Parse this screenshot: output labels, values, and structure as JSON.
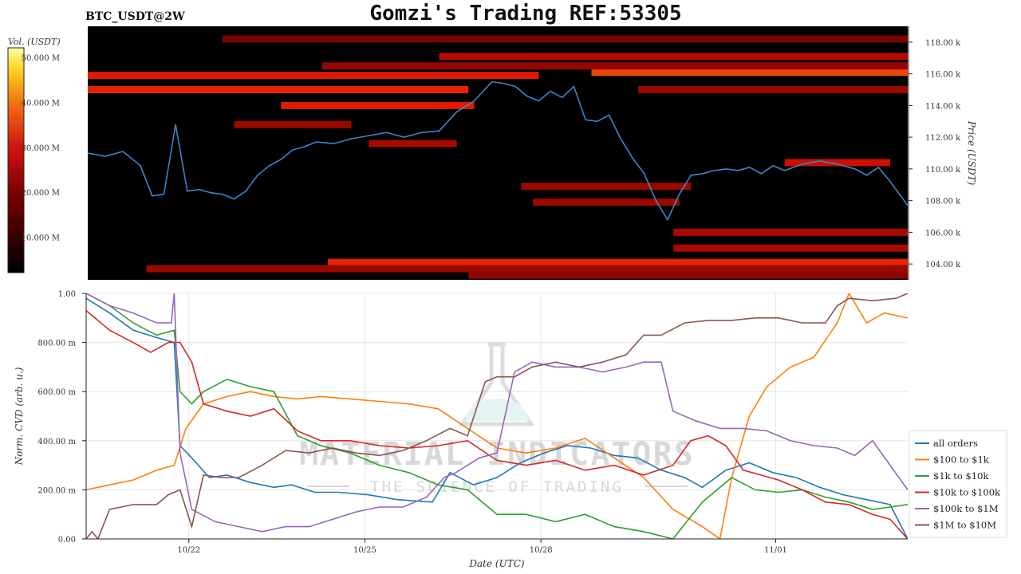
{
  "header": {
    "pair": "BTC_USDT@2W",
    "title": "Gomzi's Trading REF:53305"
  },
  "watermark": {
    "line1": "MATERIAL INDICATORS",
    "line2": "THE SCIENCE OF TRADING"
  },
  "colors": {
    "price_line": "#3b86c6",
    "heat_low": "#000000",
    "heat_mid": "#cc1010",
    "heat_high": "#ffff80",
    "grid": "#e6e6e6"
  },
  "chart_data": [
    {
      "type": "heatmap",
      "name": "order-book-heatmap",
      "xlabel": "",
      "ylabel": "Price (USDT)",
      "colorbar_label": "Vol. (USDT)",
      "colorbar_ticks": [
        "10.000 M",
        "20.000 M",
        "30.000 M",
        "40.000 M",
        "50.000 M"
      ],
      "colorbar_range": [
        0,
        50000000
      ],
      "ylim": [
        103000,
        119000
      ],
      "yticks": [
        "104.00 k",
        "106.00 k",
        "108.00 k",
        "110.00 k",
        "112.00 k",
        "114.00 k",
        "116.00 k",
        "118.00 k"
      ],
      "ytick_values": [
        104000,
        106000,
        108000,
        110000,
        112000,
        114000,
        116000,
        118000
      ],
      "x_range_days": [
        0,
        14
      ],
      "price_series": {
        "x_days": [
          0,
          0.3,
          0.6,
          0.9,
          1.1,
          1.3,
          1.5,
          1.7,
          1.9,
          2.1,
          2.3,
          2.5,
          2.7,
          2.9,
          3.1,
          3.3,
          3.5,
          3.7,
          3.9,
          4.2,
          4.5,
          4.8,
          5.1,
          5.4,
          5.7,
          6.0,
          6.3,
          6.6,
          6.9,
          7.1,
          7.3,
          7.5,
          7.7,
          7.9,
          8.1,
          8.3,
          8.5,
          8.7,
          8.9,
          9.1,
          9.3,
          9.5,
          9.7,
          9.9,
          10.1,
          10.3,
          10.5,
          10.7,
          10.9,
          11.1,
          11.3,
          11.5,
          11.7,
          11.9,
          12.2,
          12.5,
          12.8,
          13.1,
          13.3,
          13.5,
          13.7,
          13.9,
          14.0
        ],
        "price": [
          111000,
          110800,
          111100,
          110200,
          108300,
          108400,
          112800,
          108600,
          108700,
          108500,
          108400,
          108100,
          108600,
          109600,
          110200,
          110600,
          111200,
          111400,
          111700,
          111600,
          111900,
          112100,
          112300,
          112000,
          112300,
          112400,
          113600,
          114300,
          115500,
          115400,
          115200,
          114600,
          114300,
          114900,
          114500,
          115200,
          113100,
          113000,
          113400,
          111900,
          110700,
          109700,
          108000,
          106800,
          108400,
          109600,
          109700,
          109900,
          110000,
          109900,
          110100,
          109700,
          110200,
          109900,
          110300,
          110500,
          110300,
          110000,
          109600,
          110100,
          109200,
          108200,
          107700
        ]
      },
      "liquidity_bands": [
        {
          "price": 116100,
          "x_start": 8.6,
          "x_end": 14.0,
          "intensity": 0.75
        },
        {
          "price": 115900,
          "x_start": 0.0,
          "x_end": 7.7,
          "intensity": 0.55
        },
        {
          "price": 115000,
          "x_start": 0.0,
          "x_end": 6.5,
          "intensity": 0.6
        },
        {
          "price": 115000,
          "x_start": 9.4,
          "x_end": 14.0,
          "intensity": 0.25
        },
        {
          "price": 114000,
          "x_start": 3.3,
          "x_end": 6.6,
          "intensity": 0.55
        },
        {
          "price": 117100,
          "x_start": 6.0,
          "x_end": 14.0,
          "intensity": 0.35
        },
        {
          "price": 116500,
          "x_start": 4.0,
          "x_end": 14.0,
          "intensity": 0.22
        },
        {
          "price": 112800,
          "x_start": 2.5,
          "x_end": 4.5,
          "intensity": 0.25
        },
        {
          "price": 111600,
          "x_start": 4.8,
          "x_end": 6.3,
          "intensity": 0.3
        },
        {
          "price": 110400,
          "x_start": 11.9,
          "x_end": 13.7,
          "intensity": 0.45
        },
        {
          "price": 108900,
          "x_start": 7.4,
          "x_end": 10.3,
          "intensity": 0.25
        },
        {
          "price": 107900,
          "x_start": 7.6,
          "x_end": 10.1,
          "intensity": 0.25
        },
        {
          "price": 106000,
          "x_start": 10.0,
          "x_end": 14.0,
          "intensity": 0.3
        },
        {
          "price": 105000,
          "x_start": 10.0,
          "x_end": 14.0,
          "intensity": 0.3
        },
        {
          "price": 104100,
          "x_start": 4.1,
          "x_end": 14.0,
          "intensity": 0.6
        },
        {
          "price": 103700,
          "x_start": 1.0,
          "x_end": 14.0,
          "intensity": 0.25
        },
        {
          "price": 103300,
          "x_start": 6.5,
          "x_end": 14.0,
          "intensity": 0.2
        },
        {
          "price": 118200,
          "x_start": 2.3,
          "x_end": 14.0,
          "intensity": 0.12
        }
      ]
    },
    {
      "type": "line",
      "name": "normalized-cvd",
      "title": "",
      "xlabel": "Date (UTC)",
      "ylabel": "Norm. CVD (arb. u.)",
      "ylim": [
        0,
        1
      ],
      "yticks": [
        "0.00",
        "200.00 m",
        "400.00 m",
        "600.00 m",
        "800.00 m",
        "1.00"
      ],
      "ytick_values": [
        0,
        0.2,
        0.4,
        0.6,
        0.8,
        1.0
      ],
      "x_range_days": [
        0,
        14
      ],
      "xticks": [
        "10/22",
        "10/25",
        "10/28",
        "11/01"
      ],
      "xtick_days": [
        1.75,
        4.75,
        7.75,
        11.75
      ],
      "legend_position": "bottom-right",
      "series": [
        {
          "name": "all orders",
          "color": "#1f77b4",
          "x": [
            0,
            0.4,
            0.8,
            1.2,
            1.5,
            1.6,
            1.8,
            2.1,
            2.4,
            2.8,
            3.2,
            3.5,
            3.9,
            4.3,
            4.8,
            5.3,
            5.9,
            6.2,
            6.6,
            7.0,
            7.4,
            7.8,
            8.2,
            8.6,
            9.0,
            9.4,
            9.8,
            10.2,
            10.5,
            10.9,
            11.3,
            11.7,
            12.1,
            12.5,
            12.9,
            13.3,
            13.7,
            14.0
          ],
          "y": [
            0.98,
            0.92,
            0.85,
            0.82,
            0.8,
            0.38,
            0.33,
            0.25,
            0.26,
            0.23,
            0.21,
            0.22,
            0.19,
            0.19,
            0.18,
            0.16,
            0.15,
            0.27,
            0.22,
            0.25,
            0.31,
            0.35,
            0.38,
            0.37,
            0.34,
            0.33,
            0.28,
            0.25,
            0.21,
            0.28,
            0.31,
            0.27,
            0.25,
            0.21,
            0.18,
            0.16,
            0.14,
            0.0
          ]
        },
        {
          "name": "$100 to $1k",
          "color": "#ff7f0e",
          "x": [
            0,
            0.4,
            0.8,
            1.2,
            1.5,
            1.7,
            2.0,
            2.4,
            2.8,
            3.2,
            3.6,
            4.0,
            4.5,
            5.0,
            5.5,
            6.0,
            6.5,
            7.0,
            7.5,
            8.0,
            8.5,
            9.0,
            9.5,
            10.0,
            10.5,
            10.8,
            11.0,
            11.3,
            11.6,
            12.0,
            12.4,
            12.8,
            13.0,
            13.3,
            13.6,
            14.0
          ],
          "y": [
            0.2,
            0.22,
            0.24,
            0.28,
            0.3,
            0.45,
            0.55,
            0.58,
            0.6,
            0.58,
            0.57,
            0.58,
            0.57,
            0.56,
            0.55,
            0.53,
            0.45,
            0.37,
            0.35,
            0.37,
            0.41,
            0.33,
            0.25,
            0.12,
            0.05,
            0.0,
            0.25,
            0.5,
            0.62,
            0.7,
            0.74,
            0.88,
            1.0,
            0.88,
            0.92,
            0.9
          ]
        },
        {
          "name": "$1k to $10k",
          "color": "#2ca02c",
          "x": [
            0,
            0.4,
            0.8,
            1.2,
            1.5,
            1.6,
            1.8,
            2.0,
            2.4,
            2.8,
            3.2,
            3.6,
            4.0,
            4.5,
            5.0,
            5.5,
            6.0,
            6.5,
            7.0,
            7.5,
            8.0,
            8.5,
            9.0,
            9.5,
            10.0,
            10.5,
            11.0,
            11.4,
            11.8,
            12.2,
            12.6,
            13.0,
            13.4,
            13.7,
            14.0
          ],
          "y": [
            1.0,
            0.95,
            0.88,
            0.83,
            0.85,
            0.6,
            0.55,
            0.6,
            0.65,
            0.62,
            0.6,
            0.42,
            0.38,
            0.35,
            0.3,
            0.27,
            0.22,
            0.2,
            0.1,
            0.1,
            0.07,
            0.1,
            0.05,
            0.03,
            0.0,
            0.15,
            0.25,
            0.2,
            0.19,
            0.2,
            0.17,
            0.15,
            0.12,
            0.13,
            0.14
          ]
        },
        {
          "name": "$10k to $100k",
          "color": "#d62728",
          "x": [
            0,
            0.4,
            0.8,
            1.1,
            1.4,
            1.6,
            1.8,
            2.0,
            2.4,
            2.8,
            3.2,
            3.6,
            4.0,
            4.5,
            5.0,
            5.5,
            6.0,
            6.5,
            7.0,
            7.5,
            8.0,
            8.5,
            9.0,
            9.5,
            10.0,
            10.3,
            10.6,
            10.9,
            11.2,
            11.5,
            11.8,
            12.2,
            12.6,
            13.0,
            13.4,
            13.7,
            14.0
          ],
          "y": [
            0.93,
            0.85,
            0.8,
            0.76,
            0.8,
            0.8,
            0.72,
            0.55,
            0.52,
            0.5,
            0.53,
            0.44,
            0.4,
            0.4,
            0.38,
            0.37,
            0.38,
            0.4,
            0.32,
            0.3,
            0.32,
            0.28,
            0.3,
            0.26,
            0.3,
            0.4,
            0.42,
            0.38,
            0.28,
            0.26,
            0.24,
            0.2,
            0.15,
            0.14,
            0.1,
            0.08,
            0.0
          ]
        },
        {
          "name": "$100k to $1M",
          "color": "#9467bd",
          "x": [
            0,
            0.4,
            0.8,
            1.2,
            1.45,
            1.5,
            1.6,
            1.8,
            2.2,
            2.6,
            3.0,
            3.4,
            3.8,
            4.2,
            4.6,
            5.0,
            5.4,
            5.8,
            6.1,
            6.3,
            6.7,
            7.0,
            7.3,
            7.6,
            8.0,
            8.4,
            8.8,
            9.2,
            9.5,
            9.8,
            10.0,
            10.4,
            10.8,
            11.2,
            11.6,
            12.0,
            12.4,
            12.8,
            13.1,
            13.4,
            13.7,
            14.0
          ],
          "y": [
            1.0,
            0.95,
            0.92,
            0.88,
            0.88,
            1.0,
            0.35,
            0.12,
            0.07,
            0.05,
            0.03,
            0.05,
            0.05,
            0.08,
            0.11,
            0.13,
            0.13,
            0.17,
            0.25,
            0.27,
            0.33,
            0.35,
            0.68,
            0.72,
            0.7,
            0.7,
            0.68,
            0.7,
            0.72,
            0.72,
            0.52,
            0.48,
            0.45,
            0.45,
            0.44,
            0.4,
            0.38,
            0.37,
            0.34,
            0.4,
            0.3,
            0.2
          ]
        },
        {
          "name": "$1M to $10M",
          "color": "#8c564b",
          "x": [
            0,
            0.1,
            0.2,
            0.4,
            0.8,
            1.2,
            1.4,
            1.6,
            1.8,
            2.0,
            2.3,
            2.6,
            3.0,
            3.4,
            3.8,
            4.2,
            4.6,
            5.0,
            5.4,
            5.8,
            6.2,
            6.5,
            6.8,
            7.0,
            7.3,
            7.6,
            8.0,
            8.4,
            8.8,
            9.2,
            9.5,
            9.8,
            10.2,
            10.6,
            11.0,
            11.4,
            11.8,
            12.2,
            12.6,
            12.8,
            13.0,
            13.4,
            13.8,
            14.0
          ],
          "y": [
            0.0,
            0.03,
            0.0,
            0.12,
            0.14,
            0.14,
            0.18,
            0.2,
            0.05,
            0.26,
            0.25,
            0.25,
            0.3,
            0.36,
            0.35,
            0.37,
            0.35,
            0.34,
            0.36,
            0.4,
            0.45,
            0.42,
            0.64,
            0.66,
            0.66,
            0.7,
            0.72,
            0.7,
            0.72,
            0.75,
            0.83,
            0.83,
            0.88,
            0.89,
            0.89,
            0.9,
            0.9,
            0.88,
            0.88,
            0.95,
            0.98,
            0.97,
            0.98,
            1.0
          ]
        }
      ]
    }
  ]
}
